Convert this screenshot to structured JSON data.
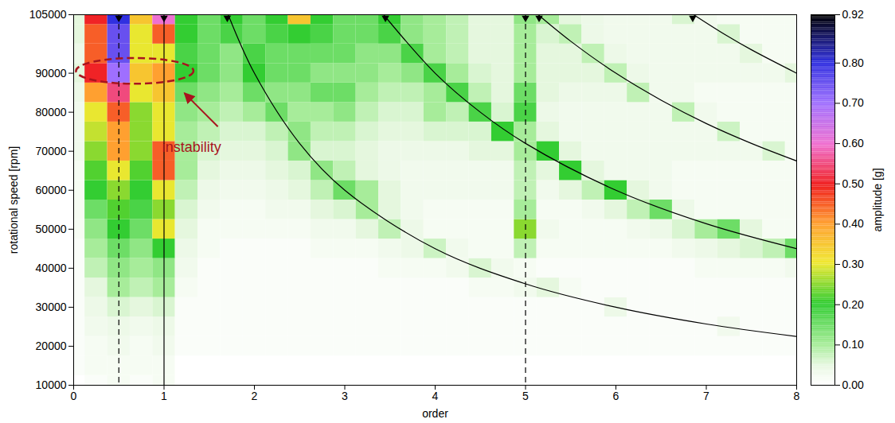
{
  "chart_data": {
    "type": "heatmap",
    "xlabel": "order",
    "ylabel": "rotational speed [rpm]",
    "xlim": [
      0,
      8
    ],
    "ylim": [
      10000,
      105000
    ],
    "xticks": [
      0,
      1,
      2,
      3,
      4,
      5,
      6,
      7,
      8
    ],
    "yticks": [
      10000,
      20000,
      30000,
      40000,
      50000,
      60000,
      70000,
      80000,
      90000,
      105000
    ],
    "heatmap": {
      "orders": [
        0,
        0.25,
        0.5,
        0.75,
        1,
        1.25,
        1.5,
        1.75,
        2,
        2.25,
        2.5,
        2.75,
        3,
        3.25,
        3.5,
        3.75,
        4,
        4.25,
        4.5,
        4.75,
        5,
        5.25,
        5.5,
        5.75,
        6,
        6.25,
        6.5,
        6.75,
        7,
        7.25,
        7.5,
        7.75,
        8
      ],
      "speeds": [
        10000,
        15000,
        20000,
        25000,
        30000,
        35000,
        40000,
        45000,
        50000,
        55000,
        60000,
        65000,
        70000,
        75000,
        80000,
        85000,
        90000,
        95000,
        100000,
        105000
      ],
      "amplitude": [
        [
          0,
          0.01,
          0.02,
          0.01,
          0.02,
          0,
          0,
          0,
          0,
          0,
          0,
          0,
          0,
          0,
          0,
          0,
          0,
          0,
          0,
          0,
          0,
          0,
          0,
          0,
          0,
          0,
          0,
          0,
          0,
          0,
          0,
          0,
          0
        ],
        [
          0.01,
          0.02,
          0.02,
          0.02,
          0.02,
          0,
          0,
          0,
          0,
          0,
          0,
          0,
          0,
          0,
          0,
          0,
          0,
          0,
          0,
          0,
          0,
          0,
          0,
          0,
          0,
          0,
          0,
          0,
          0,
          0,
          0,
          0,
          0
        ],
        [
          0.01,
          0.02,
          0.03,
          0.02,
          0.03,
          0.01,
          0.01,
          0.01,
          0.01,
          0.01,
          0.01,
          0.01,
          0.01,
          0.01,
          0.01,
          0.01,
          0.01,
          0.01,
          0.01,
          0.01,
          0.01,
          0.01,
          0.01,
          0.01,
          0.01,
          0.01,
          0.01,
          0.01,
          0.01,
          0.01,
          0.01,
          0.01,
          0.01
        ],
        [
          0.01,
          0.03,
          0.04,
          0.03,
          0.04,
          0.01,
          0.01,
          0.01,
          0.01,
          0.01,
          0.01,
          0.01,
          0.01,
          0.01,
          0.01,
          0.01,
          0.01,
          0.01,
          0.01,
          0.01,
          0.01,
          0.01,
          0.01,
          0.01,
          0.01,
          0.01,
          0.01,
          0.01,
          0.01,
          0.03,
          0.01,
          0.01,
          0.01
        ],
        [
          0.01,
          0.04,
          0.06,
          0.05,
          0.06,
          0.01,
          0.01,
          0.01,
          0.01,
          0.01,
          0.01,
          0.01,
          0.01,
          0.01,
          0.01,
          0.01,
          0.01,
          0.01,
          0.01,
          0.01,
          0.01,
          0.01,
          0.01,
          0.01,
          0.04,
          0.01,
          0.01,
          0.01,
          0.01,
          0.01,
          0.01,
          0.01,
          0.01
        ],
        [
          0.01,
          0.05,
          0.1,
          0.08,
          0.1,
          0.02,
          0.01,
          0.01,
          0.01,
          0.01,
          0.01,
          0.01,
          0.01,
          0.01,
          0.01,
          0.01,
          0.01,
          0.01,
          0.02,
          0.02,
          0.03,
          0.05,
          0.02,
          0.01,
          0.01,
          0.01,
          0.01,
          0.01,
          0.01,
          0.01,
          0.01,
          0.01,
          0.01
        ],
        [
          0.01,
          0.08,
          0.12,
          0.1,
          0.12,
          0.03,
          0.01,
          0.01,
          0.01,
          0.01,
          0.01,
          0.01,
          0.01,
          0.01,
          0.02,
          0.02,
          0.02,
          0.03,
          0.06,
          0.03,
          0.02,
          0.01,
          0.01,
          0.01,
          0.01,
          0.01,
          0.01,
          0.01,
          0.02,
          0.02,
          0.02,
          0.02,
          0.03
        ],
        [
          0.01,
          0.1,
          0.15,
          0.12,
          0.2,
          0.04,
          0.02,
          0.01,
          0.01,
          0.01,
          0.01,
          0.02,
          0.02,
          0.02,
          0.03,
          0.04,
          0.07,
          0.03,
          0.02,
          0.02,
          0.08,
          0.02,
          0.02,
          0.02,
          0.02,
          0.02,
          0.02,
          0.03,
          0.04,
          0.05,
          0.06,
          0.08,
          0.15
        ],
        [
          0.02,
          0.12,
          0.2,
          0.15,
          0.3,
          0.05,
          0.02,
          0.02,
          0.02,
          0.02,
          0.02,
          0.03,
          0.03,
          0.05,
          0.08,
          0.04,
          0.02,
          0.02,
          0.02,
          0.02,
          0.25,
          0.03,
          0.02,
          0.02,
          0.02,
          0.03,
          0.04,
          0.06,
          0.1,
          0.15,
          0.05,
          0.02,
          0.02
        ],
        [
          0.02,
          0.15,
          0.22,
          0.18,
          0.25,
          0.06,
          0.03,
          0.02,
          0.02,
          0.03,
          0.03,
          0.05,
          0.06,
          0.1,
          0.05,
          0.03,
          0.02,
          0.02,
          0.02,
          0.02,
          0.1,
          0.02,
          0.02,
          0.03,
          0.05,
          0.08,
          0.15,
          0.04,
          0.02,
          0.02,
          0.02,
          0.02,
          0.02
        ],
        [
          0.02,
          0.2,
          0.25,
          0.2,
          0.3,
          0.08,
          0.04,
          0.03,
          0.03,
          0.04,
          0.05,
          0.08,
          0.15,
          0.1,
          0.05,
          0.03,
          0.03,
          0.03,
          0.03,
          0.03,
          0.08,
          0.03,
          0.05,
          0.08,
          0.2,
          0.05,
          0.03,
          0.02,
          0.02,
          0.02,
          0.02,
          0.02,
          0.02
        ],
        [
          0.02,
          0.22,
          0.3,
          0.22,
          0.45,
          0.1,
          0.05,
          0.04,
          0.04,
          0.05,
          0.06,
          0.12,
          0.08,
          0.05,
          0.04,
          0.03,
          0.03,
          0.03,
          0.03,
          0.03,
          0.08,
          0.05,
          0.2,
          0.05,
          0.03,
          0.03,
          0.03,
          0.02,
          0.02,
          0.02,
          0.02,
          0.02,
          0.02
        ],
        [
          0.03,
          0.25,
          0.4,
          0.25,
          0.45,
          0.1,
          0.06,
          0.05,
          0.05,
          0.06,
          0.12,
          0.06,
          0.06,
          0.05,
          0.04,
          0.04,
          0.04,
          0.04,
          0.05,
          0.05,
          0.1,
          0.2,
          0.05,
          0.03,
          0.03,
          0.03,
          0.03,
          0.03,
          0.03,
          0.03,
          0.03,
          0.06,
          0.02
        ],
        [
          0.03,
          0.28,
          0.4,
          0.25,
          0.3,
          0.1,
          0.08,
          0.06,
          0.06,
          0.08,
          0.12,
          0.08,
          0.08,
          0.06,
          0.05,
          0.05,
          0.06,
          0.06,
          0.06,
          0.2,
          0.1,
          0.05,
          0.03,
          0.03,
          0.03,
          0.03,
          0.03,
          0.03,
          0.03,
          0.07,
          0.02,
          0.02,
          0.02
        ],
        [
          0.03,
          0.3,
          0.45,
          0.25,
          0.3,
          0.12,
          0.1,
          0.08,
          0.1,
          0.15,
          0.1,
          0.1,
          0.12,
          0.08,
          0.06,
          0.06,
          0.1,
          0.08,
          0.18,
          0.06,
          0.18,
          0.04,
          0.03,
          0.03,
          0.03,
          0.03,
          0.03,
          0.08,
          0.03,
          0.02,
          0.02,
          0.02,
          0.02
        ],
        [
          0.04,
          0.4,
          0.55,
          0.3,
          0.35,
          0.15,
          0.12,
          0.1,
          0.15,
          0.12,
          0.12,
          0.15,
          0.15,
          0.1,
          0.08,
          0.08,
          0.1,
          0.18,
          0.08,
          0.05,
          0.15,
          0.05,
          0.04,
          0.04,
          0.04,
          0.08,
          0.03,
          0.03,
          0.02,
          0.02,
          0.02,
          0.02,
          0.02
        ],
        [
          0.05,
          0.5,
          0.7,
          0.35,
          0.4,
          0.2,
          0.15,
          0.12,
          0.2,
          0.15,
          0.15,
          0.12,
          0.12,
          0.12,
          0.1,
          0.12,
          0.18,
          0.1,
          0.06,
          0.05,
          0.1,
          0.05,
          0.05,
          0.05,
          0.08,
          0.04,
          0.03,
          0.03,
          0.03,
          0.03,
          0.03,
          0.03,
          0.05
        ],
        [
          0.04,
          0.45,
          0.75,
          0.3,
          0.3,
          0.18,
          0.15,
          0.12,
          0.18,
          0.15,
          0.15,
          0.15,
          0.15,
          0.12,
          0.12,
          0.18,
          0.1,
          0.08,
          0.05,
          0.05,
          0.1,
          0.05,
          0.05,
          0.08,
          0.04,
          0.03,
          0.03,
          0.03,
          0.03,
          0.03,
          0.05,
          0.02,
          0.02
        ],
        [
          0.05,
          0.45,
          0.75,
          0.3,
          0.45,
          0.2,
          0.15,
          0.18,
          0.15,
          0.18,
          0.2,
          0.18,
          0.15,
          0.15,
          0.18,
          0.12,
          0.1,
          0.08,
          0.05,
          0.05,
          0.1,
          0.06,
          0.08,
          0.04,
          0.03,
          0.03,
          0.03,
          0.03,
          0.03,
          0.06,
          0.02,
          0.02,
          0.02
        ],
        [
          0.05,
          0.5,
          0.8,
          0.35,
          0.6,
          0.2,
          0.15,
          0.2,
          0.15,
          0.2,
          0.35,
          0.2,
          0.15,
          0.15,
          0.2,
          0.12,
          0.1,
          0.08,
          0.05,
          0.05,
          0.12,
          0.1,
          0.05,
          0.04,
          0.03,
          0.03,
          0.03,
          0.06,
          0.03,
          0.02,
          0.02,
          0.02,
          0.02
        ]
      ]
    },
    "colorbar": {
      "label": "amplitude [g]",
      "range": [
        0,
        0.92
      ],
      "ticks": [
        {
          "value": 0,
          "label": "0.00"
        },
        {
          "value": 0.1,
          "label": "0.10"
        },
        {
          "value": 0.2,
          "label": "0.20"
        },
        {
          "value": 0.3,
          "label": "0.30"
        },
        {
          "value": 0.4,
          "label": "0.40"
        },
        {
          "value": 0.5,
          "label": "0.50"
        },
        {
          "value": 0.6,
          "label": "0.60"
        },
        {
          "value": 0.7,
          "label": "0.70"
        },
        {
          "value": 0.8,
          "label": "0.80"
        },
        {
          "value": 0.92,
          "label": "0.92"
        }
      ]
    },
    "vertical_lines": [
      {
        "x": 0.5,
        "line_style": "dashed"
      },
      {
        "x": 1,
        "line_style": "solid"
      },
      {
        "x": 5,
        "line_style": "dashed"
      }
    ],
    "curves": [
      {
        "x": [
          1.71,
          2,
          2.5,
          3,
          4,
          5,
          6,
          7,
          8
        ],
        "y": [
          105000,
          90000,
          72000,
          60000,
          45000,
          36000,
          30000,
          25700,
          22500
        ]
      },
      {
        "x": [
          3.43,
          4,
          4.5,
          5,
          6,
          7,
          8
        ],
        "y": [
          105000,
          90000,
          80000,
          72000,
          60000,
          51400,
          45000
        ]
      },
      {
        "x": [
          5.14,
          5.5,
          6,
          6.5,
          7,
          7.5,
          8
        ],
        "y": [
          105000,
          98200,
          90000,
          83100,
          77100,
          72000,
          67500
        ]
      },
      {
        "x": [
          6.86,
          7.2,
          7.5,
          8
        ],
        "y": [
          105000,
          100000,
          96000,
          90000
        ]
      }
    ],
    "top_markers": [
      0.5,
      1,
      1.7,
      3.45,
      5,
      5.15,
      6.85
    ],
    "annotations": [
      {
        "text": "instability"
      }
    ]
  }
}
